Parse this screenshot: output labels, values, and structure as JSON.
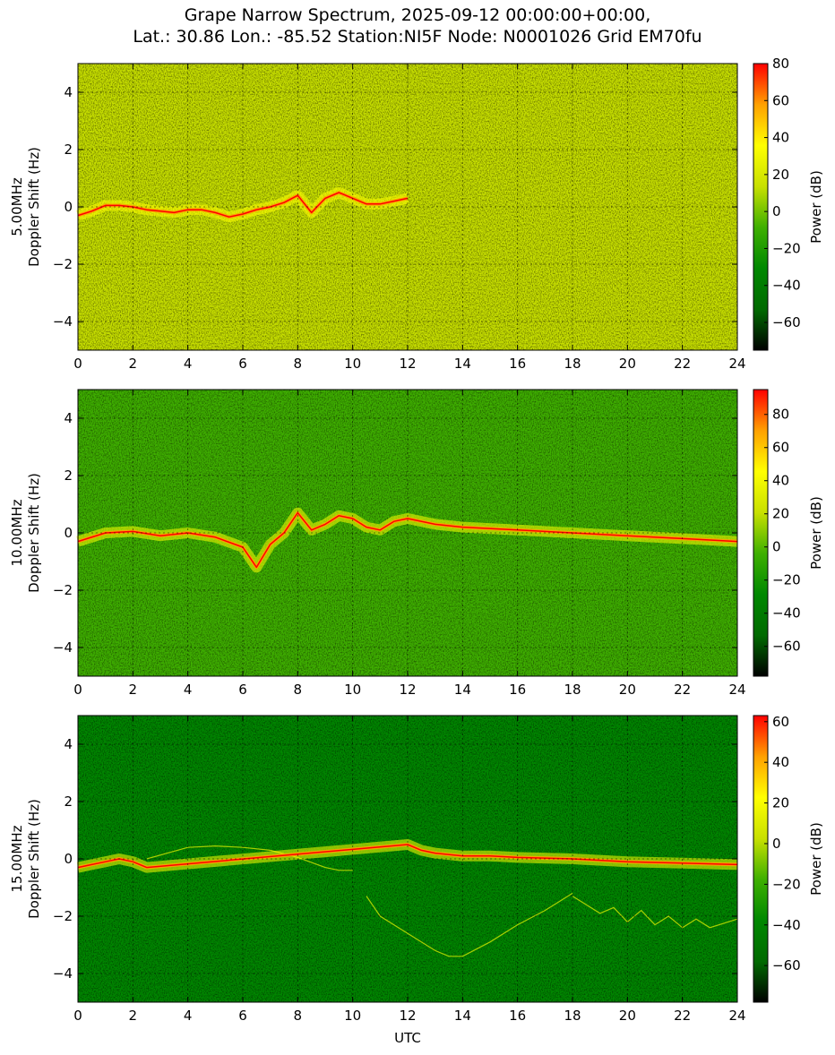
{
  "title_lines": [
    "Grape Narrow Spectrum, 2025-09-12 00:00:00+00:00,",
    "Lat.: 30.86 Lon.: -85.52 Station:NI5F Node: N0001026 Grid EM70fu"
  ],
  "colorscale": [
    "#000000",
    "#006a00",
    "#008800",
    "#3fb000",
    "#c8e000",
    "#ffff00",
    "#ffa000",
    "#ff0000"
  ],
  "chart_data": [
    {
      "type": "heatmap",
      "band_label": "5.00MHz",
      "ylabel": "Doppler Shift (Hz)",
      "xlabel": "",
      "xlim": [
        0,
        24
      ],
      "ylim": [
        -5,
        5
      ],
      "x_ticks": [
        0,
        2,
        4,
        6,
        8,
        10,
        12,
        14,
        16,
        18,
        20,
        22,
        24
      ],
      "y_ticks": [
        -4,
        -2,
        0,
        2,
        4
      ],
      "grid": true,
      "colorbar": {
        "label": "Power (dB)",
        "range": [
          -75,
          80
        ],
        "ticks": [
          -60,
          -40,
          -20,
          0,
          20,
          40,
          60,
          80
        ]
      },
      "background_level": 0.52,
      "trace": {
        "x": [
          0,
          0.5,
          1,
          1.5,
          2,
          2.5,
          3,
          3.5,
          4,
          4.5,
          5,
          5.5,
          6,
          6.5,
          7,
          7.5,
          8,
          8.5,
          9,
          9.5,
          10,
          10.5,
          11,
          11.5,
          12
        ],
        "y": [
          -0.3,
          -0.15,
          0.05,
          0.05,
          0,
          -0.1,
          -0.15,
          -0.2,
          -0.1,
          -0.1,
          -0.2,
          -0.35,
          -0.25,
          -0.1,
          0,
          0.15,
          0.4,
          -0.2,
          0.3,
          0.5,
          0.3,
          0.1,
          0.1,
          0.2,
          0.3
        ]
      }
    },
    {
      "type": "heatmap",
      "band_label": "10.00MHz",
      "ylabel": "Doppler Shift (Hz)",
      "xlabel": "",
      "xlim": [
        0,
        24
      ],
      "ylim": [
        -5,
        5
      ],
      "x_ticks": [
        0,
        2,
        4,
        6,
        8,
        10,
        12,
        14,
        16,
        18,
        20,
        22,
        24
      ],
      "y_ticks": [
        -4,
        -2,
        0,
        2,
        4
      ],
      "grid": true,
      "colorbar": {
        "label": "Power (dB)",
        "range": [
          -78,
          95
        ],
        "ticks": [
          -60,
          -40,
          -20,
          0,
          20,
          40,
          60,
          80
        ]
      },
      "background_level": 0.4,
      "trace": {
        "x": [
          0,
          1,
          2,
          3,
          4,
          5,
          6,
          6.5,
          7,
          7.5,
          8,
          8.5,
          9,
          9.5,
          10,
          10.5,
          11,
          11.5,
          12,
          13,
          14,
          16,
          18,
          20,
          22,
          24
        ],
        "y": [
          -0.3,
          0,
          0.05,
          -0.1,
          0,
          -0.15,
          -0.5,
          -1.2,
          -0.4,
          0,
          0.7,
          0.1,
          0.3,
          0.6,
          0.5,
          0.2,
          0.1,
          0.4,
          0.5,
          0.3,
          0.2,
          0.1,
          0,
          -0.1,
          -0.2,
          -0.3
        ]
      }
    },
    {
      "type": "heatmap",
      "band_label": "15.00MHz",
      "ylabel": "Doppler Shift (Hz)",
      "xlabel": "UTC",
      "xlim": [
        0,
        24
      ],
      "ylim": [
        -5,
        5
      ],
      "x_ticks": [
        0,
        2,
        4,
        6,
        8,
        10,
        12,
        14,
        16,
        18,
        20,
        22,
        24
      ],
      "y_ticks": [
        -4,
        -2,
        0,
        2,
        4
      ],
      "grid": true,
      "colorbar": {
        "label": "Power (dB)",
        "range": [
          -78,
          63
        ],
        "ticks": [
          -60,
          -40,
          -20,
          0,
          20,
          40,
          60
        ]
      },
      "background_level": 0.33,
      "trace": {
        "x": [
          0,
          0.5,
          1,
          1.5,
          2,
          2.5,
          12,
          12.5,
          13,
          14,
          15,
          16,
          18,
          20,
          22,
          24
        ],
        "y": [
          -0.3,
          -0.2,
          -0.1,
          0,
          -0.1,
          -0.3,
          0.5,
          0.3,
          0.2,
          0.1,
          0.1,
          0.05,
          0,
          -0.1,
          -0.15,
          -0.2
        ]
      },
      "faint_curves": [
        {
          "x": [
            2.5,
            4,
            5,
            6,
            7,
            8,
            9,
            9.5,
            10
          ],
          "y": [
            0,
            0.4,
            0.45,
            0.4,
            0.3,
            0.05,
            -0.3,
            -0.4,
            -0.4
          ]
        },
        {
          "x": [
            10.5,
            11,
            12,
            13,
            13.5,
            14,
            15,
            16,
            17,
            18
          ],
          "y": [
            -1.3,
            -2,
            -2.6,
            -3.2,
            -3.4,
            -3.4,
            -2.9,
            -2.3,
            -1.8,
            -1.2
          ]
        },
        {
          "x": [
            18,
            19,
            19.5,
            20,
            20.5,
            21,
            21.5,
            22,
            22.5,
            23,
            24
          ],
          "y": [
            -1.3,
            -1.9,
            -1.7,
            -2.2,
            -1.8,
            -2.3,
            -2,
            -2.4,
            -2.1,
            -2.4,
            -2.1
          ]
        }
      ]
    }
  ]
}
